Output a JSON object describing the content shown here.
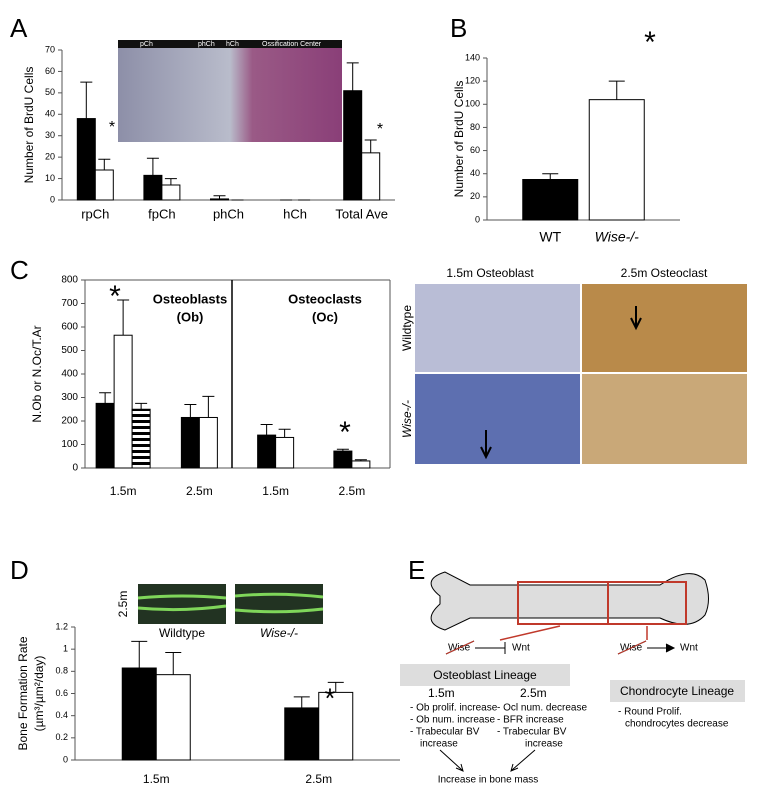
{
  "panels": [
    "A",
    "B",
    "C",
    "D",
    "E"
  ],
  "chart_data": [
    {
      "type": "bar",
      "ylabel": [
        "Number of BrdU Cells"
      ],
      "categories": [
        "rpCh",
        "fpCh",
        "phCh",
        "hCh",
        "Total Ave"
      ],
      "series": [
        {
          "color": "#000000",
          "values": [
            38,
            11.5,
            0.5,
            0,
            51
          ],
          "errors": [
            17,
            8,
            1.5,
            0,
            13
          ]
        },
        {
          "color": "#ffffff",
          "values": [
            14,
            7,
            0,
            0,
            22
          ],
          "errors": [
            5,
            3,
            0,
            0,
            6
          ]
        }
      ],
      "ylim": [
        0,
        70
      ],
      "yticks": [
        0,
        10,
        20,
        30,
        40,
        50,
        60,
        70
      ],
      "annotations": [
        "*",
        "*"
      ]
    },
    {
      "type": "bar",
      "ylabel": [
        "Number of BrdU Cells"
      ],
      "categories": [
        "WT",
        "Wise-/-"
      ],
      "series": [
        {
          "colors": [
            "#000000",
            "#ffffff"
          ],
          "values": [
            35,
            104
          ],
          "errors": [
            5,
            16
          ]
        }
      ],
      "ylim": [
        0,
        140
      ],
      "yticks": [
        0,
        20,
        40,
        60,
        80,
        100,
        120,
        140
      ],
      "annotations": [
        "*"
      ]
    },
    {
      "type": "bar",
      "ylabel": [
        "N.Ob or N.Oc/T.Ar"
      ],
      "categories": [
        "1.5m",
        "2.5m",
        "1.5m",
        "2.5m"
      ],
      "series": [
        {
          "color": "#000000",
          "values": [
            275,
            215,
            140,
            72
          ],
          "errors": [
            45,
            55,
            45,
            8
          ]
        },
        {
          "color": "#ffffff",
          "values": [
            565,
            215,
            130,
            30
          ],
          "errors": [
            150,
            90,
            35,
            5
          ]
        },
        {
          "color": "#000000",
          "hatch": true,
          "values": [
            250,
            null,
            null,
            null
          ],
          "errors": [
            25,
            null,
            null,
            null
          ]
        }
      ],
      "ylim": [
        0,
        800
      ],
      "yticks": [
        0,
        100,
        200,
        300,
        400,
        500,
        600,
        700,
        800
      ],
      "annotations": [
        "*",
        "Osteoblasts",
        "(Ob)",
        "Osteoclasts",
        "(Oc)",
        "*"
      ]
    },
    {
      "type": "bar",
      "ylabel": [
        "Bone Formation Rate",
        "(µm³/µm²/day)"
      ],
      "categories": [
        "1.5m",
        "2.5m"
      ],
      "series": [
        {
          "color": "#000000",
          "values": [
            0.83,
            0.47
          ],
          "errors": [
            0.24,
            0.1
          ]
        },
        {
          "color": "#ffffff",
          "values": [
            0.77,
            0.61
          ],
          "errors": [
            0.2,
            0.09
          ]
        }
      ],
      "ylim": [
        0,
        1.2
      ],
      "yticks": [
        0,
        0.2,
        0.4,
        0.6,
        0.8,
        1,
        1.2
      ],
      "annotations": [
        "*"
      ]
    }
  ],
  "images": {
    "a_inset": [
      "pCh",
      "phCh",
      "hCh",
      "Ossification Center"
    ],
    "c_columns": [
      "1.5m Osteoblast",
      "2.5m Osteoclast"
    ],
    "c_rows": [
      "Wildtype",
      "Wise-/-"
    ],
    "d_scale": "2.5m",
    "d_labels": [
      "Wildtype",
      "Wise-/-"
    ]
  },
  "diagram": {
    "left_pathway": [
      "Wise",
      "Wnt"
    ],
    "right_pathway": [
      "Wise",
      "Wnt"
    ],
    "osteoblast_lineage": {
      "title": "Osteoblast Lineage",
      "col1": {
        "heading": "1.5m",
        "items": [
          "- Ob prolif. increase",
          "- Ob num. increase",
          "- Trabecular BV",
          "increase"
        ]
      },
      "col2": {
        "heading": "2.5m",
        "items": [
          "- Ocl num. decrease",
          "- BFR increase",
          "- Trabecular BV",
          "increase"
        ]
      }
    },
    "chondrocyte_lineage": {
      "title": "Chondrocyte Lineage",
      "items": [
        "- Round Prolif.",
        "chondrocytes decrease"
      ]
    },
    "outcome": "Increase in bone mass"
  }
}
